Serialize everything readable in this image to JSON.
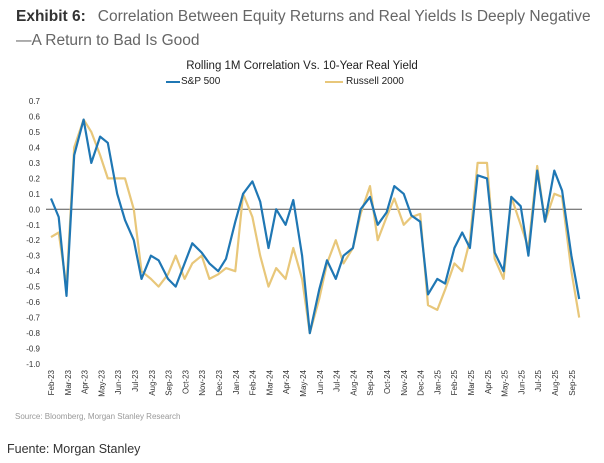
{
  "header": {
    "exhibit_label": "Exhibit 6:",
    "title": "Correlation Between Equity Returns and Real Yields Is Deeply Negative—A Return to Bad Is Good"
  },
  "source": "Source: Bloomberg, Morgan Stanley Research",
  "caption": "Fuente: Morgan Stanley",
  "chart_data": {
    "type": "line",
    "title": "Rolling 1M Correlation Vs. 10-Year Real Yield",
    "xlabel": "",
    "ylabel": "",
    "ylim": [
      -1.0,
      0.7
    ],
    "yticks": [
      "0.7",
      "0.6",
      "0.5",
      "0.4",
      "0.3",
      "0.2",
      "0.1",
      "0.0",
      "-0.1",
      "-0.2",
      "-0.3",
      "-0.4",
      "-0.5",
      "-0.6",
      "-0.7",
      "-0.8",
      "-0.9",
      "-1.0"
    ],
    "xticks": [
      "Feb-23",
      "Mar-23",
      "Apr-23",
      "May-23",
      "Jun-23",
      "Jul-23",
      "Aug-23",
      "Sep-23",
      "Oct-23",
      "Nov-23",
      "Dec-23",
      "Jan-24",
      "Feb-24",
      "Mar-24",
      "Apr-24",
      "May-24",
      "Jun-24",
      "Jul-24",
      "Aug-24",
      "Sep-24",
      "Oct-24",
      "Nov-24",
      "Dec-24",
      "Jan-25",
      "Feb-25",
      "Mar-25",
      "Apr-25",
      "May-25",
      "Jun-25",
      "Jul-25",
      "Aug-25",
      "Sep-25"
    ],
    "xlim": [
      "2023-02-01",
      "2025-09-20"
    ],
    "grid": false,
    "zero_line": true,
    "legend_position": "top",
    "x": [
      "2023-02-01",
      "2023-02-15",
      "2023-03-01",
      "2023-03-15",
      "2023-04-01",
      "2023-04-15",
      "2023-05-01",
      "2023-05-15",
      "2023-06-01",
      "2023-06-15",
      "2023-07-01",
      "2023-07-15",
      "2023-08-01",
      "2023-08-15",
      "2023-09-01",
      "2023-09-15",
      "2023-10-01",
      "2023-10-15",
      "2023-11-01",
      "2023-11-15",
      "2023-12-01",
      "2023-12-15",
      "2024-01-01",
      "2024-01-15",
      "2024-02-01",
      "2024-02-15",
      "2024-03-01",
      "2024-03-15",
      "2024-04-01",
      "2024-04-15",
      "2024-05-01",
      "2024-05-15",
      "2024-06-01",
      "2024-06-15",
      "2024-07-01",
      "2024-07-15",
      "2024-08-01",
      "2024-08-15",
      "2024-09-01",
      "2024-09-15",
      "2024-10-01",
      "2024-10-15",
      "2024-11-01",
      "2024-11-15",
      "2024-12-01",
      "2024-12-15",
      "2025-01-01",
      "2025-01-15",
      "2025-02-01",
      "2025-02-15",
      "2025-03-01",
      "2025-03-15",
      "2025-04-01",
      "2025-04-15",
      "2025-05-01",
      "2025-05-15",
      "2025-06-01",
      "2025-06-15",
      "2025-07-01",
      "2025-07-15",
      "2025-08-01",
      "2025-08-15",
      "2025-09-01",
      "2025-09-15"
    ],
    "series": [
      {
        "name": "S&P 500",
        "color": "#1f77b4",
        "values": [
          0.07,
          -0.05,
          -0.56,
          0.35,
          0.58,
          0.3,
          0.47,
          0.43,
          0.1,
          -0.07,
          -0.2,
          -0.45,
          -0.3,
          -0.33,
          -0.45,
          -0.5,
          -0.35,
          -0.22,
          -0.28,
          -0.35,
          -0.4,
          -0.32,
          -0.08,
          0.1,
          0.18,
          0.05,
          -0.25,
          0.0,
          -0.1,
          0.06,
          -0.3,
          -0.8,
          -0.52,
          -0.33,
          -0.45,
          -0.3,
          -0.25,
          0.0,
          0.08,
          -0.1,
          -0.02,
          0.15,
          0.1,
          -0.04,
          -0.08,
          -0.55,
          -0.45,
          -0.48,
          -0.25,
          -0.15,
          -0.25,
          0.22,
          0.2,
          -0.28,
          -0.4,
          0.08,
          0.02,
          -0.3,
          0.25,
          -0.08,
          0.25,
          0.12,
          -0.3,
          -0.58
        ]
      },
      {
        "name": "Russell 2000",
        "color": "#e8c77a",
        "values": [
          -0.18,
          -0.15,
          -0.5,
          0.4,
          0.58,
          0.5,
          0.35,
          0.2,
          0.2,
          0.2,
          0.0,
          -0.4,
          -0.45,
          -0.5,
          -0.42,
          -0.3,
          -0.45,
          -0.35,
          -0.3,
          -0.45,
          -0.42,
          -0.38,
          -0.4,
          0.1,
          -0.05,
          -0.3,
          -0.5,
          -0.38,
          -0.45,
          -0.25,
          -0.45,
          -0.8,
          -0.58,
          -0.35,
          -0.2,
          -0.35,
          -0.25,
          -0.03,
          0.15,
          -0.2,
          -0.05,
          0.07,
          -0.1,
          -0.05,
          -0.03,
          -0.62,
          -0.65,
          -0.52,
          -0.35,
          -0.4,
          -0.2,
          0.3,
          0.3,
          -0.32,
          -0.45,
          0.08,
          -0.1,
          -0.25,
          0.28,
          -0.08,
          0.1,
          0.08,
          -0.4,
          -0.7
        ]
      }
    ]
  }
}
